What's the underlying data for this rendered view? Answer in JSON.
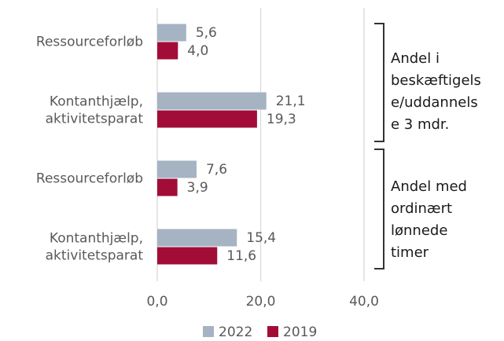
{
  "chart_data": {
    "type": "hbar",
    "categories": [
      [
        "Ressourceforløb"
      ],
      [
        "Kontanthjælp,",
        "aktivitetsparat"
      ],
      [
        "Ressourceforløb"
      ],
      [
        "Kontanthjælp,",
        "aktivitetsparat"
      ]
    ],
    "series": [
      {
        "name": "2022",
        "color": "#a5b3c3",
        "values": [
          5.6,
          21.1,
          7.6,
          15.4
        ],
        "value_labels": [
          "5,6",
          "21,1",
          "7,6",
          "15,4"
        ]
      },
      {
        "name": "2019",
        "color": "#a20d38",
        "values": [
          4.0,
          19.3,
          3.9,
          11.6
        ],
        "value_labels": [
          "4,0",
          "19,3",
          "3,9",
          "11,6"
        ]
      }
    ],
    "xlim": [
      0,
      40
    ],
    "xticks": [
      {
        "value": 0,
        "label": "0,0"
      },
      {
        "value": 20,
        "label": "20,0"
      },
      {
        "value": 40,
        "label": "40,0"
      }
    ],
    "grid": true,
    "legend": "bottom",
    "annotations": [
      {
        "lines": [
          "Andel i",
          "beskæftigels",
          "e/uddannels",
          "e 3 mdr."
        ]
      },
      {
        "lines": [
          "Andel med",
          "ordinært",
          "lønnede",
          "timer"
        ]
      }
    ]
  }
}
